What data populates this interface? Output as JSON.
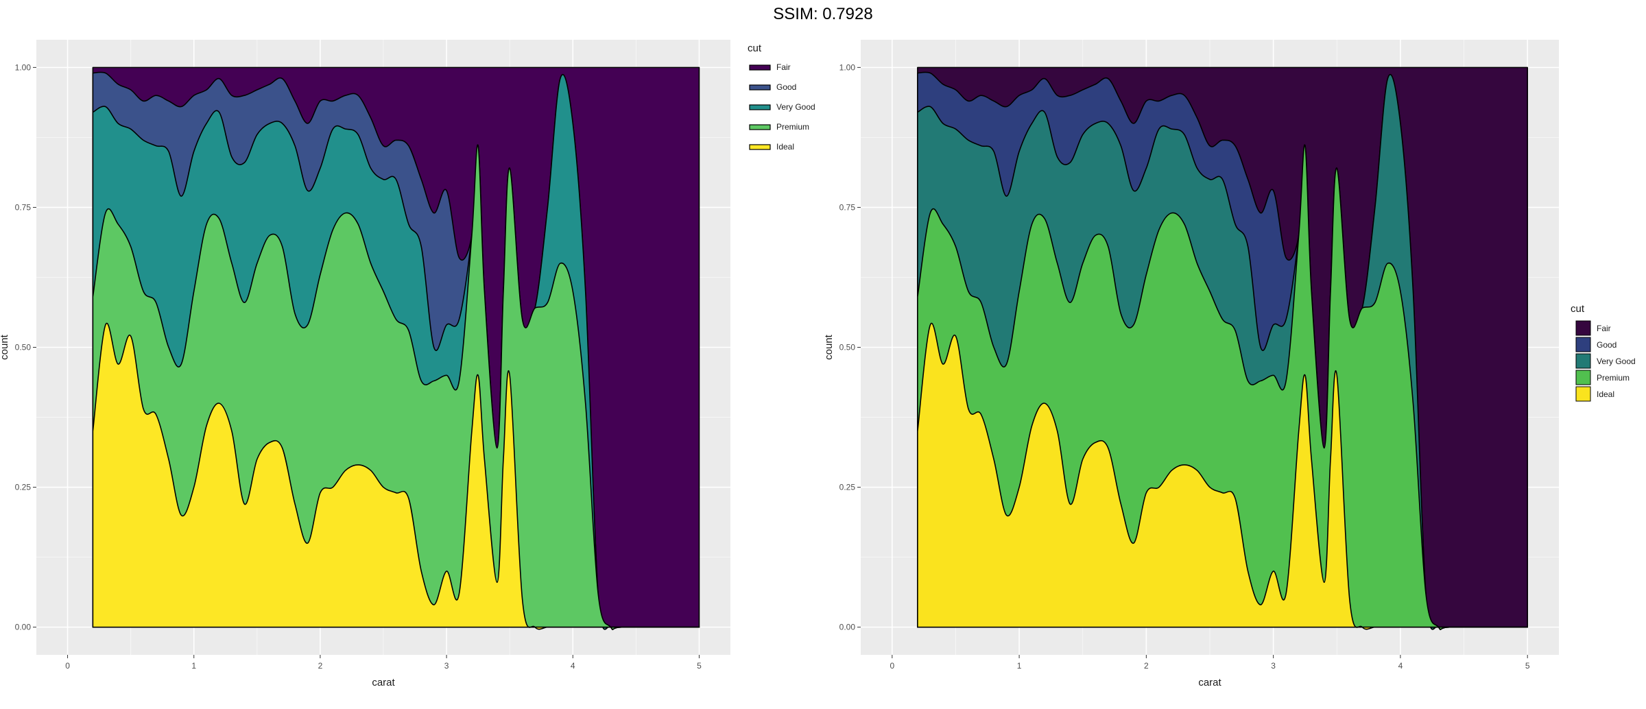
{
  "header": {
    "ssim_text": "SSIM: 0.7928"
  },
  "chart_data": [
    {
      "id": "left",
      "type": "area",
      "variant": "stacked-density-fill",
      "xlabel": "carat",
      "ylabel": "count",
      "xlim": [
        0,
        5
      ],
      "ylim": [
        0,
        1
      ],
      "x_ticks": [
        "0",
        "1",
        "2",
        "3",
        "4",
        "5"
      ],
      "y_ticks": [
        "0.00",
        "0.25",
        "0.50",
        "0.75",
        "1.00"
      ],
      "legend": {
        "title": "cut",
        "placement": "right",
        "style": "line",
        "labels": [
          "Fair",
          "Good",
          "Very Good",
          "Premium",
          "Ideal"
        ]
      },
      "colors": {
        "Fair": "#440154",
        "Good": "#3B528B",
        "Very Good": "#21908C",
        "Premium": "#5DC863",
        "Ideal": "#FDE725"
      }
    },
    {
      "id": "right",
      "type": "area",
      "variant": "stacked-density-fill",
      "xlabel": "carat",
      "ylabel": "count",
      "xlim": [
        0,
        5
      ],
      "ylim": [
        0,
        1
      ],
      "x_ticks": [
        "0",
        "1",
        "2",
        "3",
        "4",
        "5"
      ],
      "y_ticks": [
        "0.00",
        "0.25",
        "0.50",
        "0.75",
        "1.00"
      ],
      "legend": {
        "title": "cut",
        "placement": "right",
        "style": "box",
        "labels": [
          "Fair",
          "Good",
          "Very Good",
          "Premium",
          "Ideal"
        ]
      },
      "colors": {
        "Fair": "#35063E",
        "Good": "#2E3F7E",
        "Very Good": "#227A75",
        "Premium": "#51C04F",
        "Ideal": "#FAE31E"
      }
    }
  ],
  "series_shared": {
    "x": [
      0.2,
      0.3,
      0.4,
      0.5,
      0.6,
      0.7,
      0.8,
      0.9,
      1.0,
      1.1,
      1.2,
      1.3,
      1.4,
      1.5,
      1.6,
      1.7,
      1.8,
      1.9,
      2.0,
      2.1,
      2.2,
      2.3,
      2.4,
      2.5,
      2.6,
      2.7,
      2.8,
      2.9,
      3.0,
      3.1,
      3.2,
      3.25,
      3.3,
      3.4,
      3.45,
      3.5,
      3.6,
      3.7,
      3.8,
      3.9,
      4.0,
      4.1,
      4.2,
      4.3,
      4.4,
      5.0
    ],
    "cumulative": {
      "Ideal": [
        0.35,
        0.54,
        0.47,
        0.52,
        0.39,
        0.38,
        0.3,
        0.2,
        0.25,
        0.36,
        0.4,
        0.35,
        0.22,
        0.3,
        0.33,
        0.32,
        0.22,
        0.15,
        0.24,
        0.25,
        0.28,
        0.29,
        0.28,
        0.25,
        0.24,
        0.23,
        0.1,
        0.04,
        0.1,
        0.06,
        0.35,
        0.45,
        0.3,
        0.08,
        0.3,
        0.45,
        0.05,
        0.0,
        0.0,
        0.0,
        0.0,
        0.0,
        0.0,
        0.0,
        0.0,
        0.0
      ],
      "Premium": [
        0.59,
        0.74,
        0.72,
        0.68,
        0.6,
        0.58,
        0.5,
        0.47,
        0.6,
        0.72,
        0.73,
        0.65,
        0.58,
        0.65,
        0.7,
        0.68,
        0.56,
        0.54,
        0.63,
        0.71,
        0.74,
        0.72,
        0.65,
        0.6,
        0.55,
        0.53,
        0.44,
        0.44,
        0.45,
        0.44,
        0.7,
        0.86,
        0.6,
        0.32,
        0.6,
        0.82,
        0.55,
        0.57,
        0.58,
        0.65,
        0.6,
        0.4,
        0.06,
        0.0,
        0.0,
        0.0
      ],
      "Very Good": [
        0.92,
        0.93,
        0.9,
        0.89,
        0.87,
        0.86,
        0.85,
        0.77,
        0.85,
        0.9,
        0.92,
        0.84,
        0.83,
        0.88,
        0.9,
        0.9,
        0.86,
        0.78,
        0.82,
        0.89,
        0.89,
        0.88,
        0.82,
        0.8,
        0.8,
        0.72,
        0.68,
        0.5,
        0.54,
        0.55,
        0.7,
        0.86,
        0.6,
        0.32,
        0.6,
        0.82,
        0.55,
        0.57,
        0.75,
        0.98,
        0.9,
        0.6,
        0.06,
        0.0,
        0.0,
        0.0
      ],
      "Good": [
        0.99,
        0.99,
        0.97,
        0.96,
        0.94,
        0.95,
        0.94,
        0.93,
        0.95,
        0.96,
        0.98,
        0.95,
        0.95,
        0.96,
        0.97,
        0.98,
        0.94,
        0.9,
        0.94,
        0.94,
        0.95,
        0.95,
        0.91,
        0.86,
        0.87,
        0.86,
        0.8,
        0.74,
        0.78,
        0.66,
        0.7,
        0.86,
        0.6,
        0.32,
        0.6,
        0.82,
        0.55,
        0.57,
        0.75,
        0.98,
        0.9,
        0.6,
        0.06,
        0.0,
        0.0,
        0.0
      ],
      "Fair": [
        1.0,
        1.0,
        1.0,
        1.0,
        1.0,
        1.0,
        1.0,
        1.0,
        1.0,
        1.0,
        1.0,
        1.0,
        1.0,
        1.0,
        1.0,
        1.0,
        1.0,
        1.0,
        1.0,
        1.0,
        1.0,
        1.0,
        1.0,
        1.0,
        1.0,
        1.0,
        1.0,
        1.0,
        1.0,
        1.0,
        1.0,
        1.0,
        1.0,
        1.0,
        1.0,
        1.0,
        1.0,
        1.0,
        1.0,
        1.0,
        1.0,
        1.0,
        1.0,
        1.0,
        1.0,
        1.0
      ]
    }
  }
}
